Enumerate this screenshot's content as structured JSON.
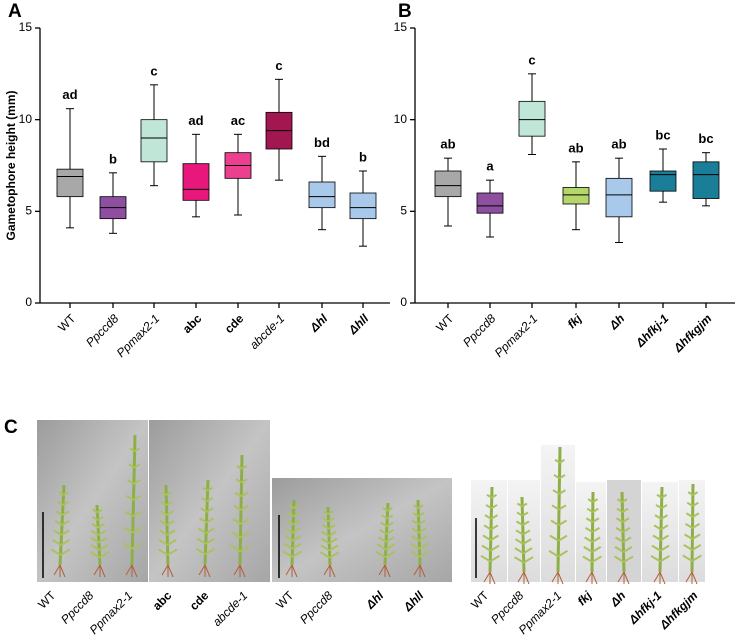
{
  "chart_data": [
    {
      "type": "box",
      "panel": "A",
      "ylabel": "Gametophore height (mm)",
      "ylim": [
        0,
        15
      ],
      "yticks": [
        0,
        5,
        10,
        15
      ],
      "categories": [
        "WT",
        "Ppccd8",
        "Ppmax2-1",
        "abc",
        "cde",
        "abcde-1",
        "Δhl",
        "Δhll"
      ],
      "label_styles": [
        "normal",
        "italic",
        "italic",
        "bold",
        "bold",
        "italic",
        "bold-italic",
        "bold-italic"
      ],
      "whisker_low": [
        4.1,
        3.8,
        6.4,
        4.7,
        4.8,
        6.7,
        4.0,
        3.1
      ],
      "q1": [
        5.8,
        4.6,
        7.7,
        5.6,
        6.8,
        8.4,
        5.2,
        4.6
      ],
      "median": [
        6.9,
        5.2,
        9.0,
        6.2,
        7.5,
        9.4,
        5.8,
        5.2
      ],
      "q3": [
        7.3,
        5.8,
        10.0,
        7.6,
        8.2,
        10.4,
        6.6,
        6.0
      ],
      "whisker_high": [
        10.6,
        7.1,
        11.9,
        9.2,
        9.2,
        12.2,
        8.0,
        7.2
      ],
      "letters": [
        "ad",
        "b",
        "c",
        "ad",
        "ac",
        "c",
        "bd",
        "b"
      ],
      "colors": [
        "#a8a8a8",
        "#8e4fa0",
        "#bfe6d6",
        "#e8177c",
        "#ec3f8f",
        "#a2174f",
        "#a9c9ea",
        "#a9c9ea"
      ]
    },
    {
      "type": "box",
      "panel": "B",
      "ylim": [
        0,
        15
      ],
      "yticks": [
        0,
        5,
        10,
        15
      ],
      "categories": [
        "WT",
        "Ppccd8",
        "Ppmax2-1",
        "fkj",
        "Δh",
        "Δhfkj-1",
        "Δhfkgjm"
      ],
      "label_styles": [
        "normal",
        "italic",
        "italic",
        "bold-italic",
        "bold-italic",
        "bold-italic",
        "bold-italic"
      ],
      "whisker_low": [
        4.2,
        3.6,
        8.1,
        4.0,
        3.3,
        5.5,
        5.3
      ],
      "q1": [
        5.8,
        4.9,
        9.1,
        5.4,
        4.7,
        6.1,
        5.7
      ],
      "median": [
        6.4,
        5.3,
        10.0,
        5.9,
        5.9,
        7.0,
        7.0
      ],
      "q3": [
        7.2,
        6.0,
        11.0,
        6.3,
        6.8,
        7.2,
        7.7
      ],
      "whisker_high": [
        7.9,
        6.7,
        12.5,
        7.7,
        7.9,
        8.4,
        8.2
      ],
      "letters": [
        "ab",
        "a",
        "c",
        "ab",
        "ab",
        "bc",
        "bc"
      ],
      "colors": [
        "#a8a8a8",
        "#8e4fa0",
        "#bfe6d6",
        "#b5d66a",
        "#a9c9ea",
        "#1a7e99",
        "#1a7e99"
      ]
    }
  ],
  "panel_c": {
    "panel": "C",
    "labels": [
      "WT",
      "Ppccd8",
      "Ppmax2-1",
      "abc",
      "cde",
      "abcde-1",
      "WT",
      "Ppccd8",
      "Δhl",
      "Δhll",
      "WT",
      "Ppccd8",
      "Ppmax2-1",
      "fkj",
      "Δh",
      "Δhfkj-1",
      "Δhfkgjm"
    ],
    "label_styles": [
      "normal",
      "italic",
      "italic",
      "bold",
      "bold",
      "italic",
      "normal",
      "italic",
      "bold-italic",
      "bold-italic",
      "normal",
      "italic",
      "italic",
      "bold-italic",
      "bold-italic",
      "bold-italic",
      "bold-italic"
    ]
  }
}
